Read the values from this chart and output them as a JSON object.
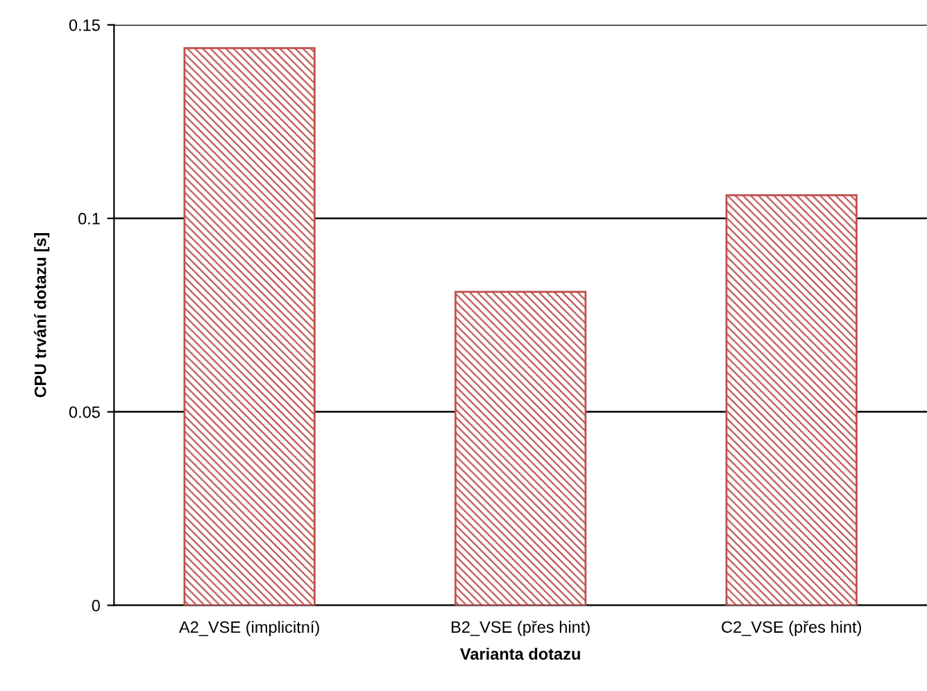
{
  "chart_data": {
    "type": "bar",
    "xlabel": "Varianta dotazu",
    "ylabel": "CPU trvání dotazu [s]",
    "categories": [
      "A2_VSE (implicitní)",
      "B2_VSE (přes hint)",
      "C2_VSE (přes hint)"
    ],
    "values": [
      0.144,
      0.081,
      0.106
    ],
    "color": "#c0504d",
    "ylim": [
      0,
      0.15
    ],
    "yticks": [
      0,
      0.05,
      0.1,
      0.15
    ],
    "grid": "y"
  }
}
